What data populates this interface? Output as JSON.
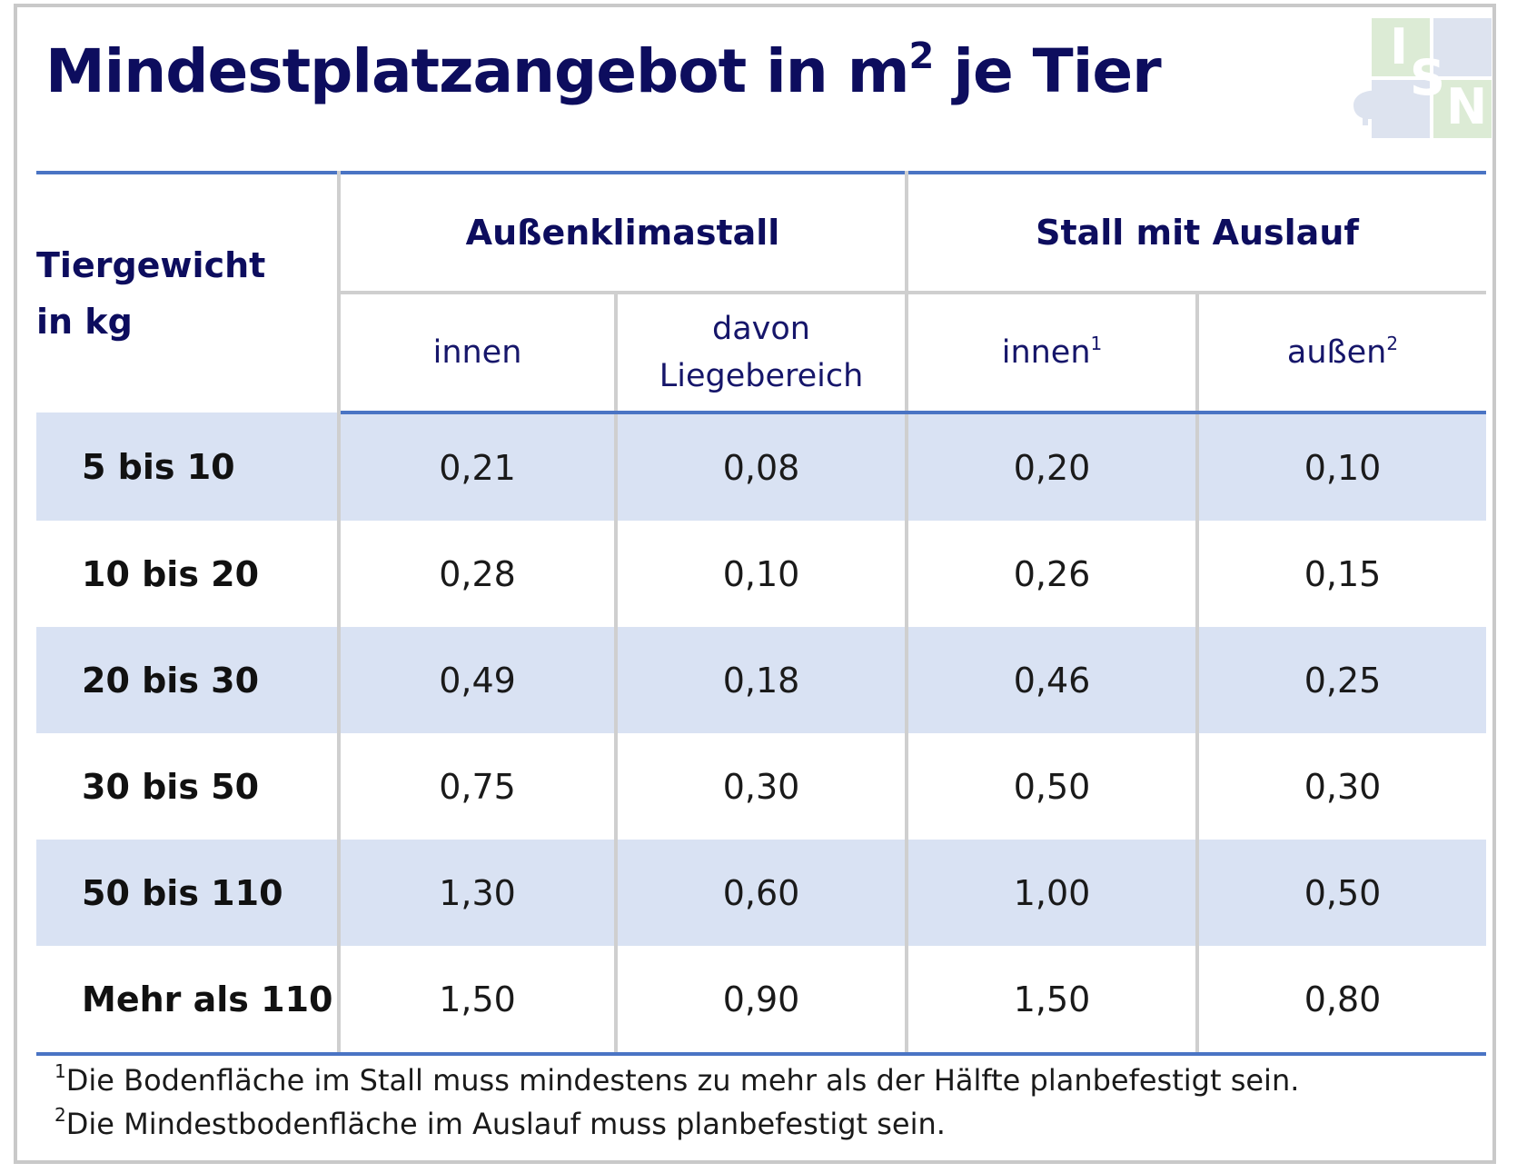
{
  "title": {
    "main": "Mindestplatzangebot in m",
    "sup": "2",
    "tail": " je Tier"
  },
  "logo": {
    "letters": [
      "I",
      "S",
      "N"
    ],
    "colors": {
      "green": "#dcebd5",
      "blue": "#dde3ef"
    },
    "icon": "pig-icon"
  },
  "table": {
    "row_header": {
      "line1": "Tiergewicht",
      "line2": "in kg"
    },
    "groups": [
      "Außenklimastall",
      "Stall mit Auslauf"
    ],
    "subheaders": [
      {
        "text": "innen",
        "sup": ""
      },
      {
        "line1": "davon",
        "line2": "Liegebereich"
      },
      {
        "text": "innen",
        "sup": "1"
      },
      {
        "text": "außen",
        "sup": "2"
      }
    ],
    "rows": [
      {
        "label": "5 bis 10",
        "values": [
          "0,21",
          "0,08",
          "0,20",
          "0,10"
        ]
      },
      {
        "label": "10 bis 20",
        "values": [
          "0,28",
          "0,10",
          "0,26",
          "0,15"
        ]
      },
      {
        "label": "20 bis 30",
        "values": [
          "0,49",
          "0,18",
          "0,46",
          "0,25"
        ]
      },
      {
        "label": "30 bis 50",
        "values": [
          "0,75",
          "0,30",
          "0,50",
          "0,30"
        ]
      },
      {
        "label": "50 bis 110",
        "values": [
          "1,30",
          "0,60",
          "1,00",
          "0,50"
        ]
      },
      {
        "label": "Mehr als 110",
        "values": [
          "1,50",
          "0,90",
          "1,50",
          "0,80"
        ]
      }
    ]
  },
  "footnotes": [
    {
      "mark": "1",
      "text": "Die Bodenfläche im Stall muss mindestens zu mehr als der Hälfte planbefestigt sein."
    },
    {
      "mark": "2",
      "text": "Die Mindestbodenfläche im Auslauf muss planbefestigt sein."
    }
  ],
  "colors": {
    "title": "#0d0d5e",
    "rule": "#4a74c4",
    "shade": "#d9e2f3",
    "divider": "#cfcfcf"
  }
}
